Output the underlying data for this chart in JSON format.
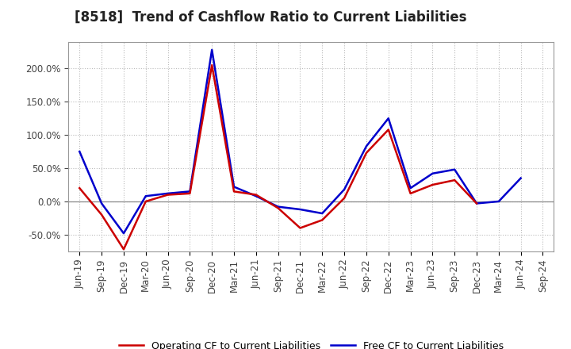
{
  "title": "[8518]  Trend of Cashflow Ratio to Current Liabilities",
  "x_labels": [
    "Jun-19",
    "Sep-19",
    "Dec-19",
    "Mar-20",
    "Jun-20",
    "Sep-20",
    "Dec-20",
    "Mar-21",
    "Jun-21",
    "Sep-21",
    "Dec-21",
    "Mar-22",
    "Jun-22",
    "Sep-22",
    "Dec-22",
    "Mar-23",
    "Jun-23",
    "Sep-23",
    "Dec-23",
    "Mar-24",
    "Jun-24",
    "Sep-24"
  ],
  "operating_cf": [
    20.0,
    -20.0,
    -72.0,
    0.0,
    10.0,
    12.0,
    205.0,
    15.0,
    10.0,
    -10.0,
    -40.0,
    -28.0,
    5.0,
    73.0,
    108.0,
    12.0,
    25.0,
    32.0,
    -3.0,
    null,
    null,
    null
  ],
  "free_cf": [
    75.0,
    -3.0,
    -48.0,
    8.0,
    12.0,
    15.0,
    228.0,
    22.0,
    8.0,
    -8.0,
    -12.0,
    -18.0,
    18.0,
    83.0,
    125.0,
    20.0,
    42.0,
    48.0,
    -3.0,
    0.0,
    35.0,
    null
  ],
  "operating_cf_color": "#cc0000",
  "free_cf_color": "#0000cc",
  "background_color": "#ffffff",
  "plot_bg_color": "#ffffff",
  "grid_color": "#bbbbbb",
  "ylim_min": -75,
  "ylim_max": 240,
  "yticks": [
    -50.0,
    0.0,
    50.0,
    100.0,
    150.0,
    200.0
  ],
  "legend_labels": [
    "Operating CF to Current Liabilities",
    "Free CF to Current Liabilities"
  ],
  "title_fontsize": 12,
  "tick_fontsize": 8.5,
  "legend_fontsize": 9,
  "line_width": 1.8
}
